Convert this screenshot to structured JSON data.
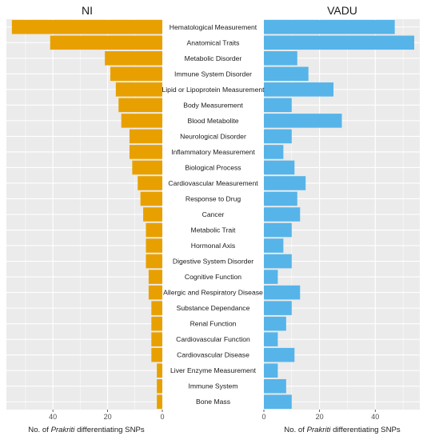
{
  "chart_data": {
    "type": "bar",
    "orientation": "horizontal",
    "layout": "back-to-back",
    "categories": [
      "Hematological Measurement",
      "Anatomical Traits",
      "Metabolic Disorder",
      "Immune System Disorder",
      "Lipid or Lipoprotein Measurement",
      "Body Measurement",
      "Blood Metabolite",
      "Neurological Disorder",
      "Inflammatory Measurement",
      "Biological Process",
      "Cardiovascular Measurement",
      "Response to Drug",
      "Cancer",
      "Metabolic Trait",
      "Hormonal Axis",
      "Digestive System Disorder",
      "Cognitive Function",
      "Allergic and Respiratory Disease",
      "Substance Dependance",
      "Renal Function",
      "Cardiovascular Function",
      "Cardiovascular Disease",
      "Liver Enzyme Measurement",
      "Immune System",
      "Bone Mass"
    ],
    "series": [
      {
        "name": "NI",
        "color": "#E8A000",
        "values": [
          55,
          41,
          21,
          19,
          17,
          16,
          15,
          12,
          12,
          11,
          9,
          8,
          7,
          6,
          6,
          6,
          5,
          5,
          4,
          4,
          4,
          4,
          2,
          2,
          2
        ]
      },
      {
        "name": "VADU",
        "color": "#56B4E9",
        "values": [
          47,
          54,
          12,
          16,
          25,
          10,
          28,
          10,
          7,
          11,
          15,
          12,
          13,
          10,
          7,
          10,
          5,
          13,
          10,
          8,
          5,
          11,
          5,
          8,
          10
        ]
      }
    ],
    "panels": [
      {
        "title": "NI",
        "xlim": [
          0,
          57
        ],
        "reversed": true,
        "ticks": [
          0,
          20,
          40
        ],
        "tick_labels": [
          "0",
          "20",
          "40"
        ],
        "xlabel_prefix": "No. of ",
        "xlabel_italic": "Prakriti",
        "xlabel_suffix": " differentiating SNPs"
      },
      {
        "title": "VADU",
        "xlim": [
          0,
          56
        ],
        "reversed": false,
        "ticks": [
          0,
          20,
          40
        ],
        "tick_labels": [
          "0",
          "20",
          "40"
        ],
        "xlabel_prefix": "No. of ",
        "xlabel_italic": "Prakriti",
        "xlabel_suffix": " differentiating SNPs"
      }
    ],
    "grid": true,
    "legend": "none",
    "panel_background": "#EBEBEB",
    "grid_color": "#FFFFFF"
  }
}
